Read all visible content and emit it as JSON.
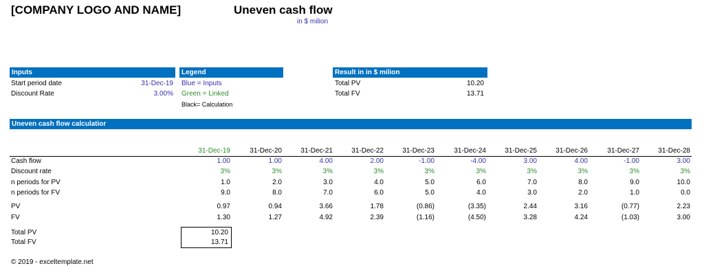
{
  "header": {
    "company": "[COMPANY LOGO AND NAME]",
    "title": "Uneven cash flow",
    "subtitle": "in $ milion"
  },
  "inputs": {
    "title": "Inputs",
    "rows": [
      [
        "Start period date",
        "31-Dec-19"
      ],
      [
        "Discount Rate",
        "3.00%"
      ]
    ]
  },
  "legend": {
    "title": "Legend",
    "items": [
      "Blue = Inputs",
      "Green = Linked",
      "Black= Calculation"
    ]
  },
  "result": {
    "title": "Result in in $ milion",
    "rows": [
      [
        "Total PV",
        "10.20"
      ],
      [
        "Total FV",
        "13.71"
      ]
    ]
  },
  "calculator": {
    "title": "Uneven cash flow calculatior",
    "dates": [
      "31-Dec-19",
      "31-Dec-20",
      "31-Dec-21",
      "31-Dec-22",
      "31-Dec-23",
      "31-Dec-24",
      "31-Dec-25",
      "31-Dec-26",
      "31-Dec-27",
      "31-Dec-28"
    ],
    "rows": [
      {
        "label": "Cash flow",
        "values": [
          "1.00",
          "1.00",
          "4.00",
          "2.00",
          "-1.00",
          "-4.00",
          "3.00",
          "4.00",
          "-1.00",
          "3.00"
        ]
      },
      {
        "label": "Discount rate",
        "values": [
          "3%",
          "3%",
          "3%",
          "3%",
          "3%",
          "3%",
          "3%",
          "3%",
          "3%",
          "3%"
        ]
      },
      {
        "label": "n periods for PV",
        "values": [
          "1.0",
          "2.0",
          "3.0",
          "4.0",
          "5.0",
          "6.0",
          "7.0",
          "8.0",
          "9.0",
          "10.0"
        ]
      },
      {
        "label": "n periods for FV",
        "values": [
          "9.0",
          "8.0",
          "7.0",
          "6.0",
          "5.0",
          "4.0",
          "3.0",
          "2.0",
          "1.0",
          "0.0"
        ]
      },
      {
        "label": "PV",
        "values": [
          "0.97",
          "0.94",
          "3.66",
          "1.78",
          "(0.86)",
          "(3.35)",
          "2.44",
          "3.16",
          "(0.77)",
          "2.23"
        ]
      },
      {
        "label": "FV",
        "values": [
          "1.30",
          "1.27",
          "4.92",
          "2.39",
          "(1.16)",
          "(4.50)",
          "3.28",
          "4.24",
          "(1.03)",
          "3.00"
        ]
      }
    ]
  },
  "totals": [
    [
      "Total PV",
      "10.20"
    ],
    [
      "Total FV",
      "13.71"
    ]
  ],
  "footer": "© 2019 - exceltemplate.net"
}
